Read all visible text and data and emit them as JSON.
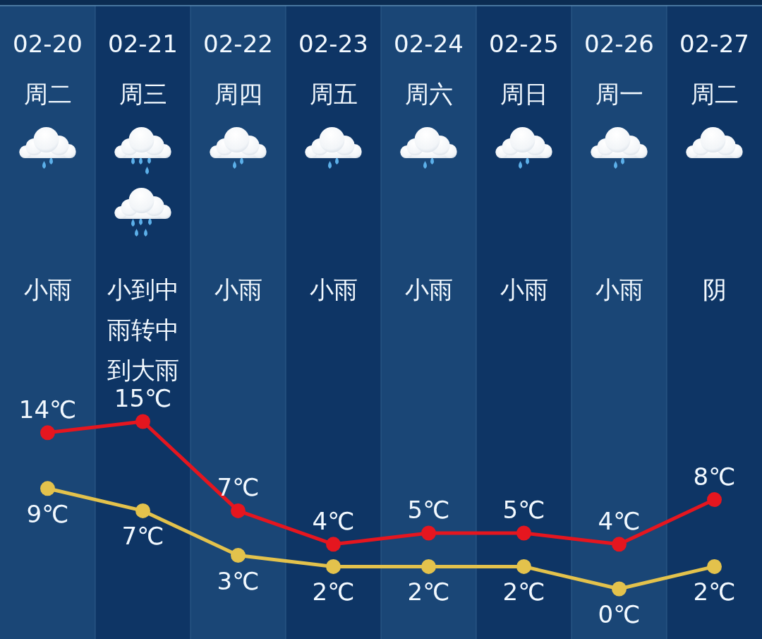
{
  "chart_data": {
    "type": "line",
    "categories": [
      "02-20\n周二",
      "02-21\n周三",
      "02-22\n周四",
      "02-23\n周五",
      "02-24\n周六",
      "02-25\n周日",
      "02-26\n周一",
      "02-27\n周二"
    ],
    "annotations": [
      "小雨",
      "小到中雨转中到大雨",
      "小雨",
      "小雨",
      "小雨",
      "小雨",
      "小雨",
      "阴"
    ],
    "series": [
      {
        "color": "#e5161f",
        "values": [
          14,
          15,
          7,
          4,
          5,
          5,
          4,
          8
        ],
        "value_labels": [
          "14℃",
          "15℃",
          "7℃",
          "4℃",
          "5℃",
          "5℃",
          "4℃",
          "8℃"
        ]
      },
      {
        "color": "#e3c24c",
        "values": [
          9,
          7,
          3,
          2,
          2,
          2,
          0,
          2
        ],
        "value_labels": [
          "9℃",
          "7℃",
          "3℃",
          "2℃",
          "2℃",
          "2℃",
          "0℃",
          "2℃"
        ]
      }
    ],
    "marker": "circle",
    "line_style": "solid"
  }
}
